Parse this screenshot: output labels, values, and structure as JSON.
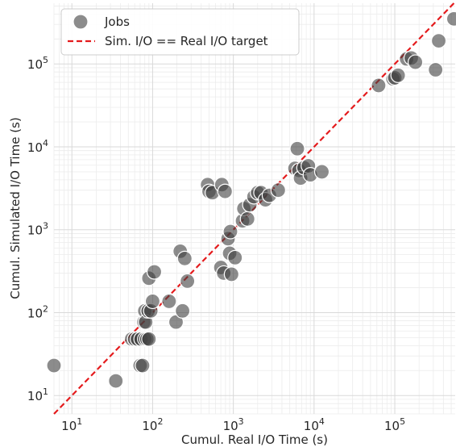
{
  "chart_data": {
    "type": "scatter",
    "title": "",
    "xlabel": "Cumul. Real I/O Time (s)",
    "ylabel": "Cumul. Simulated I/O Time (s)",
    "xscale": "log",
    "yscale": "log",
    "xlim": [
      6,
      560000
    ],
    "ylim": [
      6,
      540000
    ],
    "grid": true,
    "legend_position": "top-left",
    "x_ticks": [
      {
        "value": 10,
        "base": "10",
        "exp": "1"
      },
      {
        "value": 100,
        "base": "10",
        "exp": "2"
      },
      {
        "value": 1000,
        "base": "10",
        "exp": "3"
      },
      {
        "value": 10000,
        "base": "10",
        "exp": "4"
      },
      {
        "value": 100000,
        "base": "10",
        "exp": "5"
      }
    ],
    "y_ticks": [
      {
        "value": 10,
        "base": "10",
        "exp": "1"
      },
      {
        "value": 100,
        "base": "10",
        "exp": "2"
      },
      {
        "value": 1000,
        "base": "10",
        "exp": "3"
      },
      {
        "value": 10000,
        "base": "10",
        "exp": "4"
      },
      {
        "value": 100000,
        "base": "10",
        "exp": "5"
      }
    ],
    "series": [
      {
        "name": "Jobs",
        "color": "#404040",
        "points": [
          [
            6,
            23
          ],
          [
            35,
            15
          ],
          [
            55,
            48
          ],
          [
            60,
            48
          ],
          [
            65,
            48
          ],
          [
            70,
            23
          ],
          [
            72,
            48
          ],
          [
            75,
            23
          ],
          [
            78,
            77
          ],
          [
            80,
            48
          ],
          [
            80,
            105
          ],
          [
            82,
            77
          ],
          [
            85,
            48
          ],
          [
            88,
            105
          ],
          [
            90,
            48
          ],
          [
            90,
            260
          ],
          [
            95,
            105
          ],
          [
            100,
            137
          ],
          [
            105,
            310
          ],
          [
            160,
            137
          ],
          [
            195,
            77
          ],
          [
            220,
            550
          ],
          [
            235,
            105
          ],
          [
            250,
            450
          ],
          [
            270,
            240
          ],
          [
            480,
            3500
          ],
          [
            500,
            2900
          ],
          [
            550,
            2800
          ],
          [
            700,
            350
          ],
          [
            720,
            3500
          ],
          [
            760,
            300
          ],
          [
            790,
            2900
          ],
          [
            860,
            780
          ],
          [
            900,
            520
          ],
          [
            920,
            950
          ],
          [
            950,
            290
          ],
          [
            1050,
            460
          ],
          [
            1300,
            1280
          ],
          [
            1350,
            1800
          ],
          [
            1500,
            1350
          ],
          [
            1600,
            2000
          ],
          [
            1800,
            2500
          ],
          [
            2000,
            2800
          ],
          [
            2200,
            2800
          ],
          [
            2500,
            2300
          ],
          [
            2800,
            2600
          ],
          [
            3600,
            3000
          ],
          [
            5800,
            5500
          ],
          [
            6200,
            9500
          ],
          [
            6500,
            5200
          ],
          [
            6800,
            4200
          ],
          [
            7500,
            5600
          ],
          [
            8500,
            5900
          ],
          [
            9000,
            4600
          ],
          [
            12500,
            5000
          ],
          [
            63000,
            55000
          ],
          [
            95000,
            66000
          ],
          [
            100000,
            68000
          ],
          [
            110000,
            73000
          ],
          [
            140000,
            115000
          ],
          [
            160000,
            118000
          ],
          [
            180000,
            105000
          ],
          [
            320000,
            85000
          ],
          [
            350000,
            190000
          ],
          [
            540000,
            350000
          ]
        ]
      },
      {
        "name": "Sim. I/O == Real I/O target",
        "color": "#e41a1c",
        "line": [
          [
            6,
            6
          ],
          [
            560000,
            560000
          ]
        ]
      }
    ]
  }
}
